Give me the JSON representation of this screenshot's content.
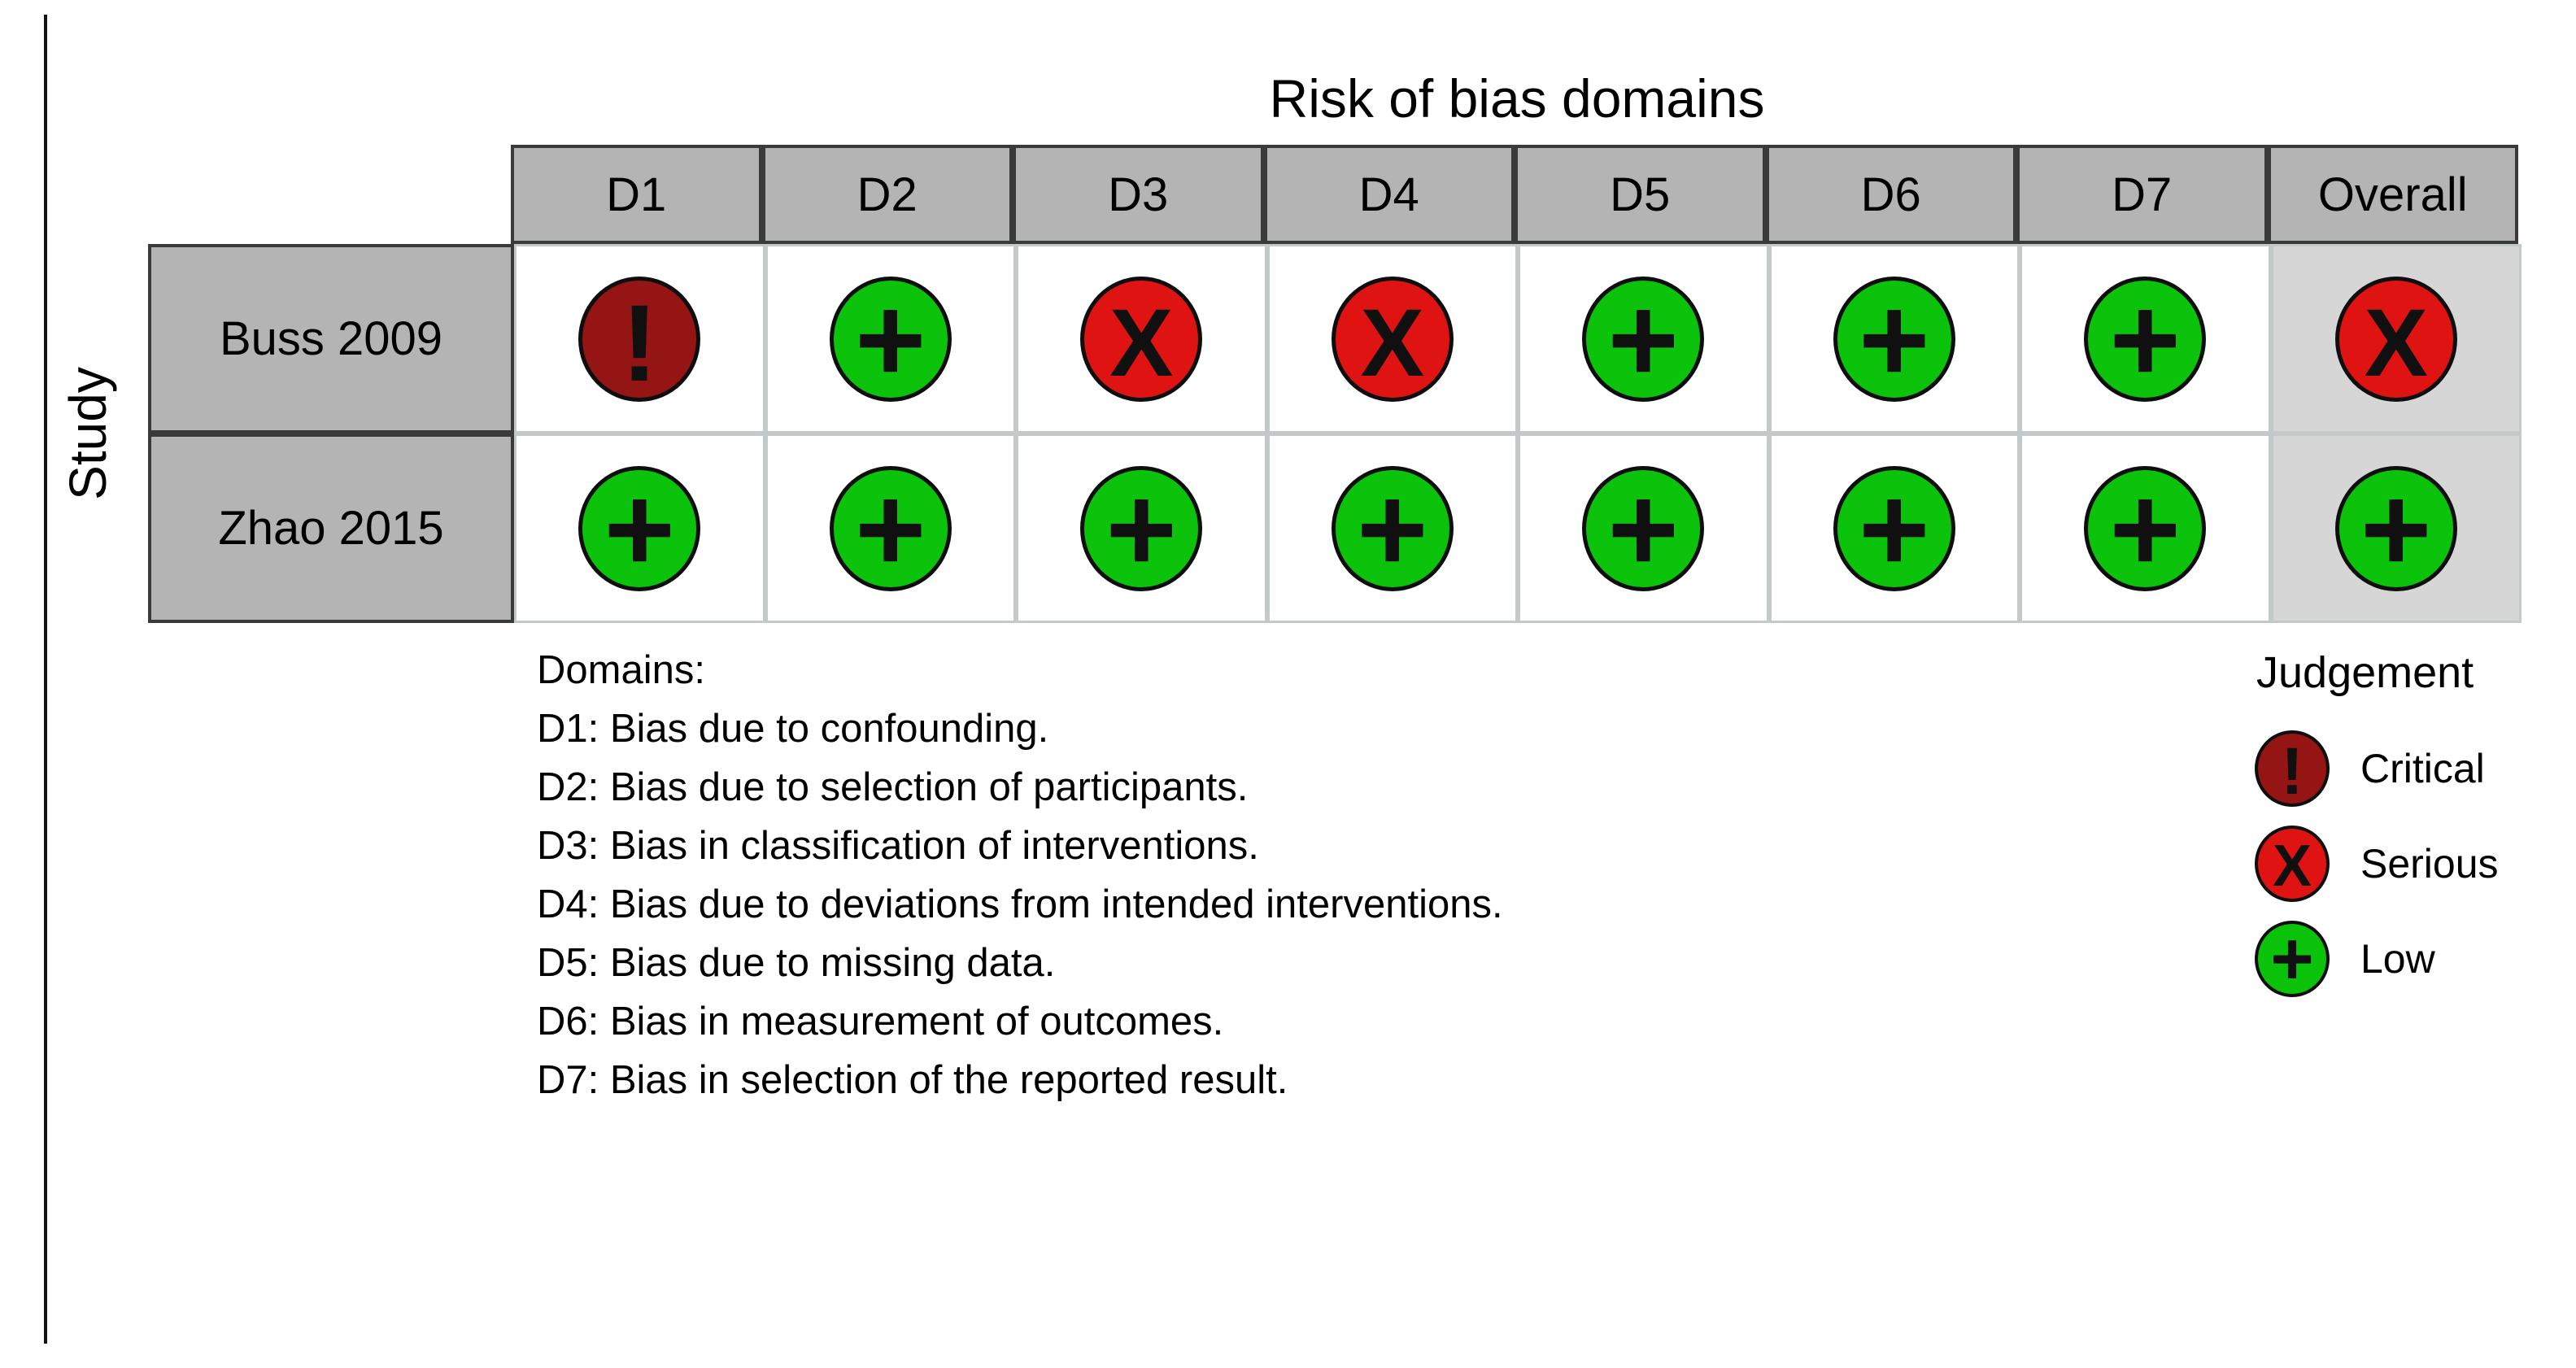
{
  "title": "Risk of bias domains",
  "y_axis_label": "Study",
  "columns": [
    "D1",
    "D2",
    "D3",
    "D4",
    "D5",
    "D6",
    "D7",
    "Overall"
  ],
  "rows": [
    {
      "study": "Buss 2009",
      "judgements": [
        "critical",
        "low",
        "serious",
        "serious",
        "low",
        "low",
        "low",
        "serious"
      ]
    },
    {
      "study": "Zhao 2015",
      "judgements": [
        "low",
        "low",
        "low",
        "low",
        "low",
        "low",
        "low",
        "low"
      ]
    }
  ],
  "judgement_styles": {
    "critical": {
      "symbol": "!",
      "color": "#951414",
      "label": "Critical"
    },
    "serious": {
      "symbol": "X",
      "color": "#e01313",
      "label": "Serious"
    },
    "low": {
      "symbol": "+",
      "color": "#0cc30c",
      "label": "Low"
    }
  },
  "legend": {
    "title": "Judgement",
    "entries": [
      "critical",
      "serious",
      "low"
    ]
  },
  "domains_note": {
    "heading": "Domains:",
    "items": [
      "D1: Bias due to confounding.",
      "D2: Bias due to selection of participants.",
      "D3: Bias in classification of interventions.",
      "D4: Bias due to deviations from intended interventions.",
      "D5: Bias due to missing data.",
      "D6: Bias in measurement of outcomes.",
      "D7: Bias in selection of the reported result."
    ]
  },
  "colors": {
    "header_fill": "#b4b4b4",
    "study_fill": "#b4b4b4",
    "overall_column_fill": "#d6d6d6",
    "grid_line": "#c3c8c8",
    "dark_border": "#3a3a3a",
    "critical": "#951414",
    "serious": "#e01313",
    "low": "#0cc30c"
  },
  "chart_data": {
    "type": "table",
    "title": "Risk of bias domains",
    "ylabel": "Study",
    "columns": [
      "D1",
      "D2",
      "D3",
      "D4",
      "D5",
      "D6",
      "D7",
      "Overall"
    ],
    "row_labels": [
      "Buss 2009",
      "Zhao 2015"
    ],
    "values": [
      [
        "Critical",
        "Low",
        "Serious",
        "Serious",
        "Low",
        "Low",
        "Low",
        "Serious"
      ],
      [
        "Low",
        "Low",
        "Low",
        "Low",
        "Low",
        "Low",
        "Low",
        "Low"
      ]
    ],
    "legend": {
      "title": "Judgement",
      "entries": [
        "Critical",
        "Serious",
        "Low"
      ],
      "position": "bottom-right"
    },
    "footnotes": [
      "Domains:",
      "D1: Bias due to confounding.",
      "D2: Bias due to selection of participants.",
      "D3: Bias in classification of interventions.",
      "D4: Bias due to deviations from intended interventions.",
      "D5: Bias due to missing data.",
      "D6: Bias in measurement of outcomes.",
      "D7: Bias in selection of the reported result."
    ]
  }
}
